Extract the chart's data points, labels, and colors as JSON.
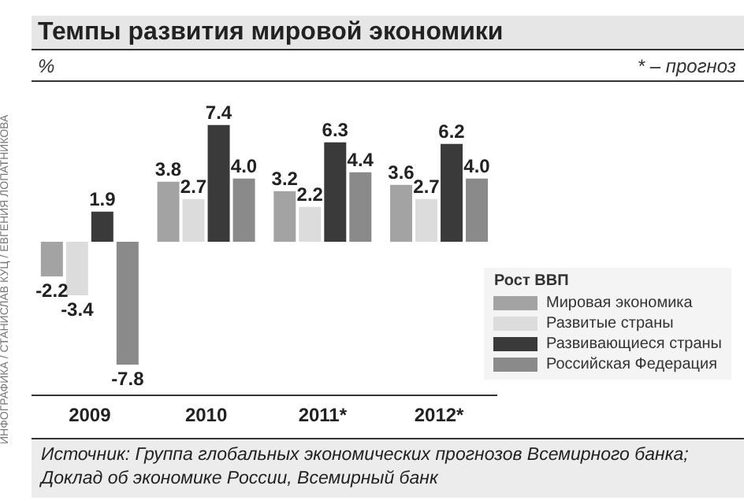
{
  "chart_data": {
    "type": "bar",
    "title": "Темпы развития мировой экономики",
    "annotations": [
      "%",
      "* – прогноз",
      "Источник: Группа глобальных экономических прогнозов Всемирного банка; Доклад об экономике России, Всемирный банк",
      "ИНФОГРАФИКА / СТАНИСЛАВ КУЦ / ЕВГЕНИЯ ЛОПАТНИКОВА"
    ],
    "categories": [
      "2009",
      "2010",
      "2011*",
      "2012*"
    ],
    "series": [
      {
        "name": "Мировая экономика",
        "color": "#a3a3a3",
        "values": [
          -2.2,
          3.8,
          3.2,
          3.6
        ],
        "value_labels": [
          "-2.2",
          "3.8",
          "3.2",
          "3.6"
        ]
      },
      {
        "name": "Развитые страны",
        "color": "#dcdcdc",
        "values": [
          -3.4,
          2.7,
          2.2,
          2.7
        ],
        "value_labels": [
          "-3.4",
          "2.7",
          "2.2",
          "2.7"
        ]
      },
      {
        "name": "Развивающиеся страны",
        "color": "#3a3a3a",
        "values": [
          1.9,
          7.4,
          6.3,
          6.2
        ],
        "value_labels": [
          "1.9",
          "7.4",
          "6.3",
          "6.2"
        ]
      },
      {
        "name": "Российская Федерация",
        "color": "#8a8a8a",
        "values": [
          -7.8,
          4.0,
          4.4,
          4.0
        ],
        "value_labels": [
          "-7.8",
          "4.0",
          "4.4",
          "4.0"
        ]
      }
    ],
    "legend_title": "Рост ВВП",
    "legend": "bottom right",
    "tick_labels": "x"
  }
}
